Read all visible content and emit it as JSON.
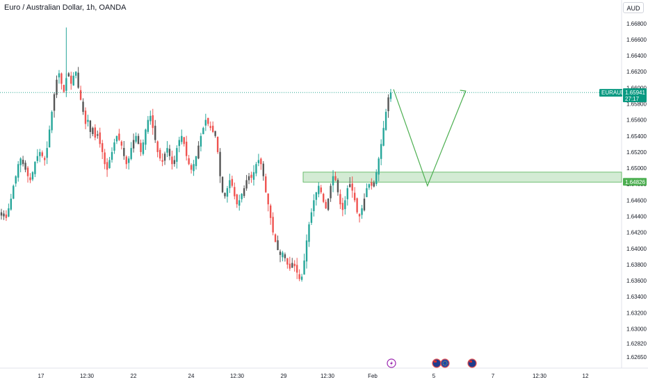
{
  "header": {
    "title": "Euro / Australian Dollar, 1h, OANDA",
    "currency_label": "AUD"
  },
  "colors": {
    "up": "#26a69a",
    "down": "#ef5350",
    "doji": "#555555",
    "zone_fill": "#c8e6c9",
    "zone_line": "#4caf50",
    "projection": "#4caf50",
    "price_tag": "#089981"
  },
  "chart_data": {
    "type": "candlestick",
    "symbol": "EURAUD",
    "interval": "1h",
    "source": "OANDA",
    "ylim": [
      1.6265,
      1.6685
    ],
    "y_ticks": [
      "1.66800",
      "1.66600",
      "1.66400",
      "1.66200",
      "1.66000",
      "1.65800",
      "1.65600",
      "1.65400",
      "1.65200",
      "1.65000",
      "1.64800",
      "1.64600",
      "1.64400",
      "1.64200",
      "1.64000",
      "1.63800",
      "1.63600",
      "1.63400",
      "1.63200",
      "1.63000",
      "1.62820",
      "1.62650"
    ],
    "x_ticks": [
      "17",
      "12:30",
      "22",
      "24",
      "12:30",
      "29",
      "12:30",
      "Feb",
      "5",
      "7",
      "12:30",
      "12"
    ],
    "current_price": {
      "symbol_label": "EURAUD",
      "price": "1.65941",
      "countdown": "27:17",
      "value": 1.65941
    },
    "support_zone": {
      "low": 1.64826,
      "high": 1.6495,
      "label": "1.64826"
    },
    "projection_path": [
      {
        "x": 0,
        "price": 1.6598
      },
      {
        "x": 8,
        "price": 1.6478
      },
      {
        "x": 17,
        "price": 1.6596
      }
    ],
    "price_path": [
      1.6445,
      1.644,
      1.6438,
      1.645,
      1.6462,
      1.6478,
      1.649,
      1.6505,
      1.6512,
      1.6505,
      1.6498,
      1.649,
      1.6485,
      1.6495,
      1.6508,
      1.6515,
      1.652,
      1.6515,
      1.651,
      1.6525,
      1.6548,
      1.657,
      1.6592,
      1.661,
      1.6618,
      1.6605,
      1.6595,
      1.6612,
      1.6618,
      1.6605,
      1.6615,
      1.662,
      1.66,
      1.6585,
      1.657,
      1.6555,
      1.656,
      1.6545,
      1.655,
      1.6538,
      1.6542,
      1.653,
      1.652,
      1.6505,
      1.6498,
      1.651,
      1.652,
      1.6532,
      1.654,
      1.6535,
      1.6528,
      1.6515,
      1.6505,
      1.6512,
      1.6525,
      1.6535,
      1.654,
      1.653,
      1.652,
      1.6532,
      1.6548,
      1.656,
      1.6565,
      1.655,
      1.6535,
      1.652,
      1.6512,
      1.6508,
      1.6518,
      1.6525,
      1.6515,
      1.6505,
      1.651,
      1.6525,
      1.6535,
      1.654,
      1.653,
      1.6515,
      1.6505,
      1.6498,
      1.6505,
      1.6515,
      1.6528,
      1.654,
      1.655,
      1.656,
      1.6555,
      1.655,
      1.6545,
      1.654,
      1.652,
      1.649,
      1.647,
      1.6465,
      1.6475,
      1.6485,
      1.6478,
      1.6465,
      1.6455,
      1.646,
      1.6468,
      1.6475,
      1.6485,
      1.649,
      1.6488,
      1.6495,
      1.6505,
      1.651,
      1.6505,
      1.649,
      1.647,
      1.6455,
      1.6438,
      1.642,
      1.6408,
      1.6398,
      1.6392,
      1.6395,
      1.6388,
      1.638,
      1.6375,
      1.6382,
      1.6378,
      1.637,
      1.6362,
      1.6365,
      1.6385,
      1.641,
      1.643,
      1.6445,
      1.646,
      1.647,
      1.6478,
      1.647,
      1.6458,
      1.645,
      1.6462,
      1.6478,
      1.649,
      1.6485,
      1.647,
      1.6455,
      1.6448,
      1.646,
      1.6475,
      1.648,
      1.6472,
      1.646,
      1.6445,
      1.644,
      1.645,
      1.6462,
      1.6475,
      1.648,
      1.6478,
      1.6482,
      1.6495,
      1.6512,
      1.653,
      1.655,
      1.657,
      1.6588,
      1.6594
    ]
  },
  "events": {
    "items": [
      {
        "type": "lightning",
        "label": "⚡"
      },
      {
        "type": "flag-au",
        "label": "🇦🇺"
      },
      {
        "type": "flag-eu",
        "label": "🇪🇺"
      },
      {
        "type": "flag-au",
        "label": "🇦🇺"
      }
    ]
  }
}
